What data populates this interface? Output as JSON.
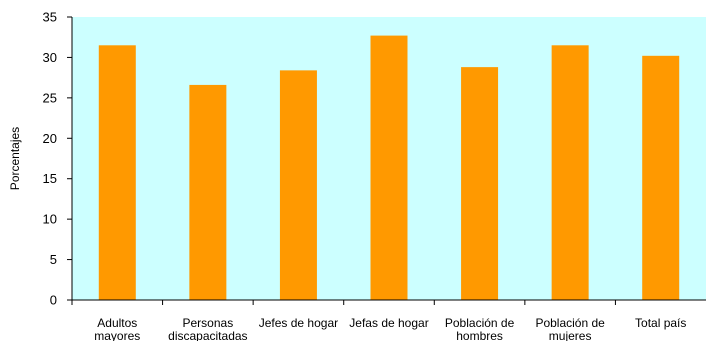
{
  "chart_data": {
    "type": "bar",
    "categories": [
      [
        "Adultos",
        "mayores"
      ],
      [
        "Personas",
        "discapacitadas"
      ],
      [
        "Jefes de hogar"
      ],
      [
        "Jefas de  hogar"
      ],
      [
        "Población de",
        "hombres"
      ],
      [
        "Población de",
        "mujeres"
      ],
      [
        "Total país"
      ]
    ],
    "values": [
      31.5,
      26.6,
      28.4,
      32.7,
      28.8,
      31.5,
      30.2
    ],
    "ylabel": "Porcentajes",
    "ylim": [
      0,
      35
    ],
    "yticks": [
      0,
      5,
      10,
      15,
      20,
      25,
      30,
      35
    ],
    "grid": false,
    "legend": "none",
    "colors": {
      "bar": "#ff9900",
      "plot_background": "#ccffff",
      "axis": "#000000"
    }
  }
}
